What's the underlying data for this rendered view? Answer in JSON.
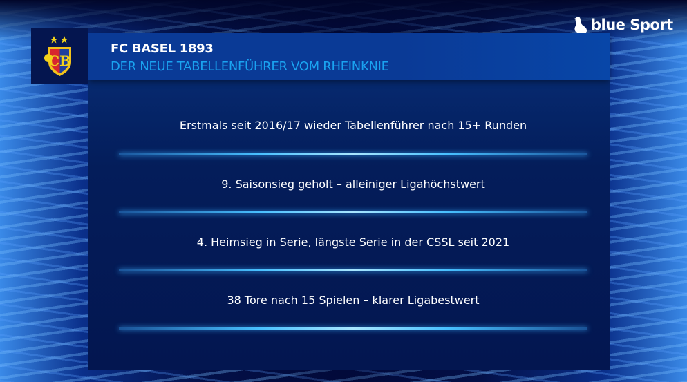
{
  "brand": {
    "name": "blue Sport",
    "icon": "swan-icon"
  },
  "header": {
    "title": "FC BASEL 1893",
    "subtitle": "DER NEUE TABELLENFÜHRER VOM RHEINKNIE",
    "logo": "fc-basel-crest",
    "accent": "#1aa3f0"
  },
  "facts": [
    "Erstmals seit 2016/17 wieder Tabellenführer nach 15+ Runden",
    "9. Saisonsieg geholt – alleiniger Ligahöchstwert",
    "4. Heimsieg in Serie, längste Serie in der CSSL seit 2021",
    "38 Tore nach 15 Spielen – klarer Ligabestwert"
  ]
}
